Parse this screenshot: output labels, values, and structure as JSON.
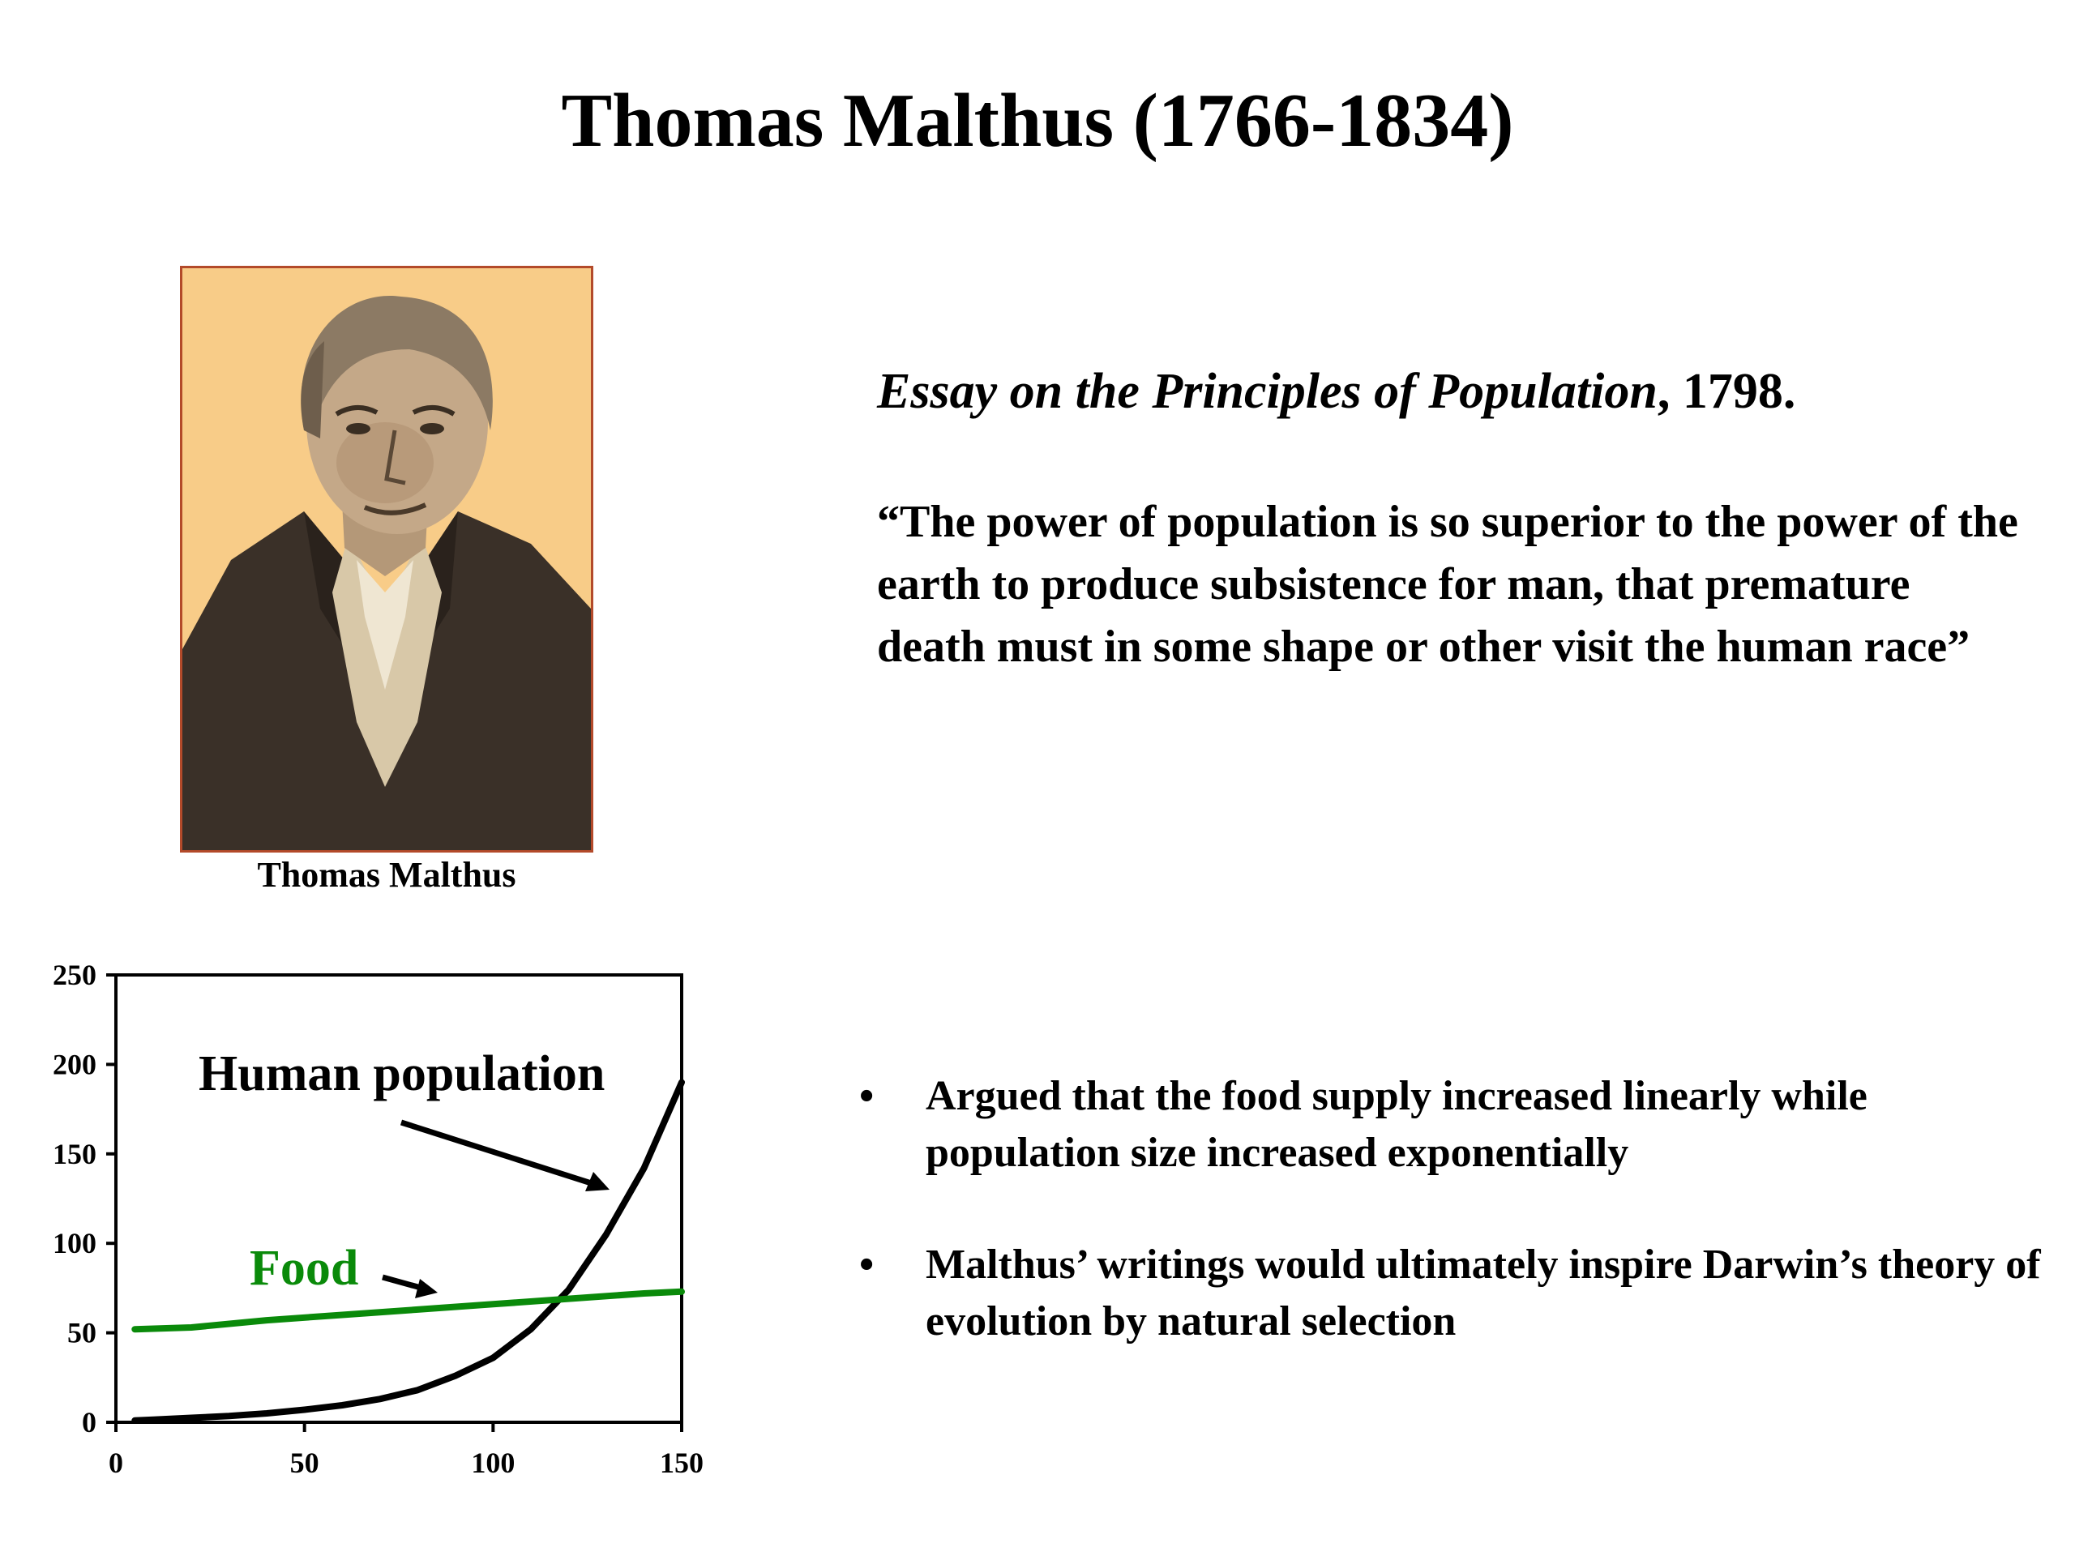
{
  "slide": {
    "title": "Thomas Malthus (1766-1834)",
    "portrait_caption": "Thomas Malthus",
    "essay": {
      "book_title": "Essay on the Principles of Population",
      "year_suffix": ", 1798."
    },
    "quote": "“The power of population is so superior to the power of the earth to produce subsistence for man, that premature death must in some shape or other visit the human race”",
    "bullets": [
      {
        "marker": "•",
        "text": "Argued that the food supply increased linearly while population size increased exponentially"
      },
      {
        "marker": "•",
        "text": "Malthus’ writings would ultimately inspire Darwin’s theory of evolution by natural selection"
      }
    ]
  },
  "chart_data": {
    "type": "line",
    "xlim": [
      0,
      150
    ],
    "ylim": [
      0,
      250
    ],
    "x_ticks": [
      0,
      50,
      100,
      150
    ],
    "y_ticks": [
      0,
      50,
      100,
      150,
      200,
      250
    ],
    "grid": false,
    "series": [
      {
        "name": "Human population",
        "color": "#000000",
        "points": [
          [
            5,
            1
          ],
          [
            10,
            1.5
          ],
          [
            20,
            2.5
          ],
          [
            30,
            3.5
          ],
          [
            40,
            5
          ],
          [
            50,
            7
          ],
          [
            60,
            9.5
          ],
          [
            70,
            13
          ],
          [
            80,
            18
          ],
          [
            90,
            26
          ],
          [
            100,
            36
          ],
          [
            110,
            52
          ],
          [
            120,
            74
          ],
          [
            130,
            105
          ],
          [
            140,
            142
          ],
          [
            150,
            190
          ]
        ]
      },
      {
        "name": "Food",
        "color": "#0a8a0a",
        "points": [
          [
            5,
            52
          ],
          [
            20,
            53
          ],
          [
            40,
            57
          ],
          [
            60,
            60
          ],
          [
            80,
            63
          ],
          [
            100,
            66
          ],
          [
            120,
            69
          ],
          [
            140,
            72
          ],
          [
            150,
            73
          ]
        ]
      }
    ]
  }
}
